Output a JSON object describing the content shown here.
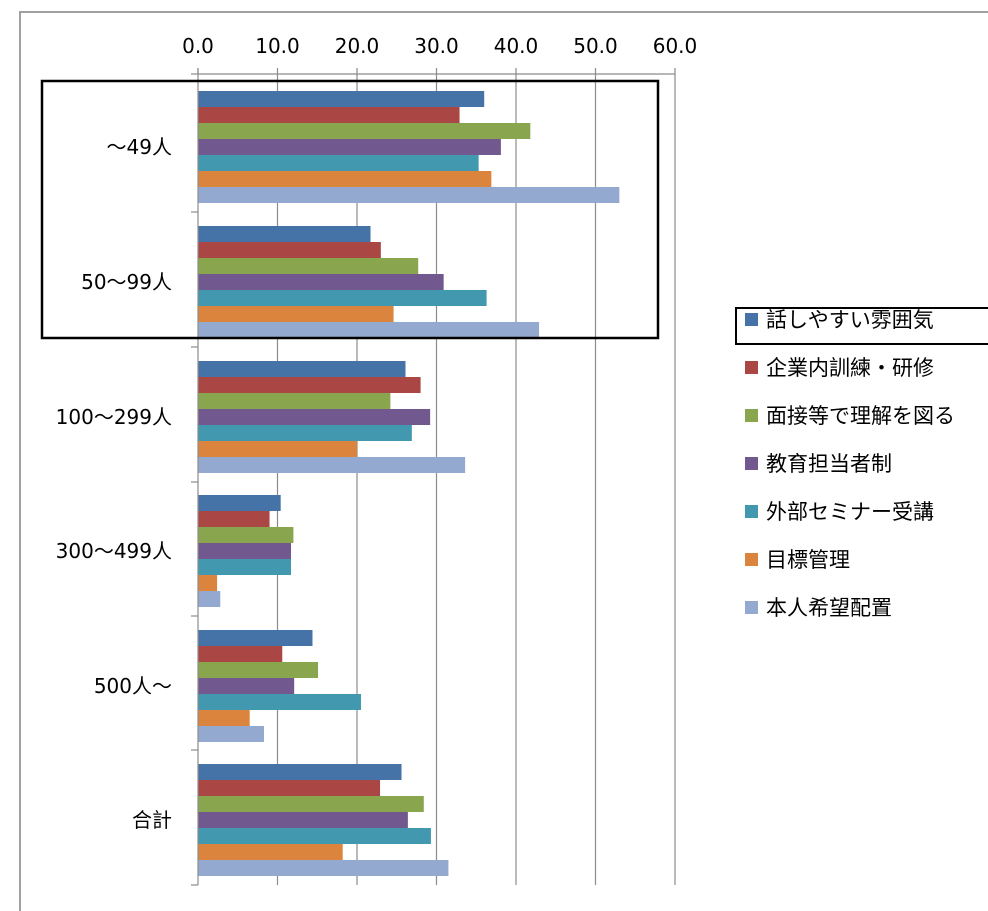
{
  "chart_data": {
    "type": "bar",
    "orientation": "horizontal",
    "categories": [
      "～49人",
      "50～99人",
      "100～299人",
      "300～499人",
      "500人～",
      "合計"
    ],
    "xlim": [
      0,
      60
    ],
    "xticks": [
      "0.0",
      "10.0",
      "20.0",
      "30.0",
      "40.0",
      "50.0",
      "60.0"
    ],
    "x_axis_position": "top",
    "grid": "vertical",
    "legend_position": "right",
    "series": [
      {
        "name": "話しやすい雰囲気",
        "color": "#4572A7",
        "values": [
          36.0,
          21.7,
          26.1,
          10.4,
          14.4,
          25.6
        ]
      },
      {
        "name": "企業内訓練・研修",
        "color": "#AA4643",
        "values": [
          32.9,
          23.0,
          28.0,
          9.0,
          10.6,
          22.9
        ]
      },
      {
        "name": "面接等で理解を図る",
        "color": "#89A54E",
        "values": [
          41.8,
          27.7,
          24.2,
          12.0,
          15.1,
          28.4
        ]
      },
      {
        "name": "教育担当者制",
        "color": "#71588F",
        "values": [
          38.1,
          30.9,
          29.2,
          11.7,
          12.1,
          26.4
        ]
      },
      {
        "name": "外部セミナー受講",
        "color": "#4198AF",
        "values": [
          35.3,
          36.3,
          26.9,
          11.7,
          20.5,
          29.3
        ]
      },
      {
        "name": "目標管理",
        "color": "#DB843D",
        "values": [
          36.9,
          24.6,
          20.0,
          2.4,
          6.5,
          18.2
        ]
      },
      {
        "name": "本人希望配置",
        "color": "#93A9CF",
        "values": [
          53.0,
          42.9,
          33.6,
          2.8,
          8.3,
          31.5
        ]
      }
    ]
  }
}
